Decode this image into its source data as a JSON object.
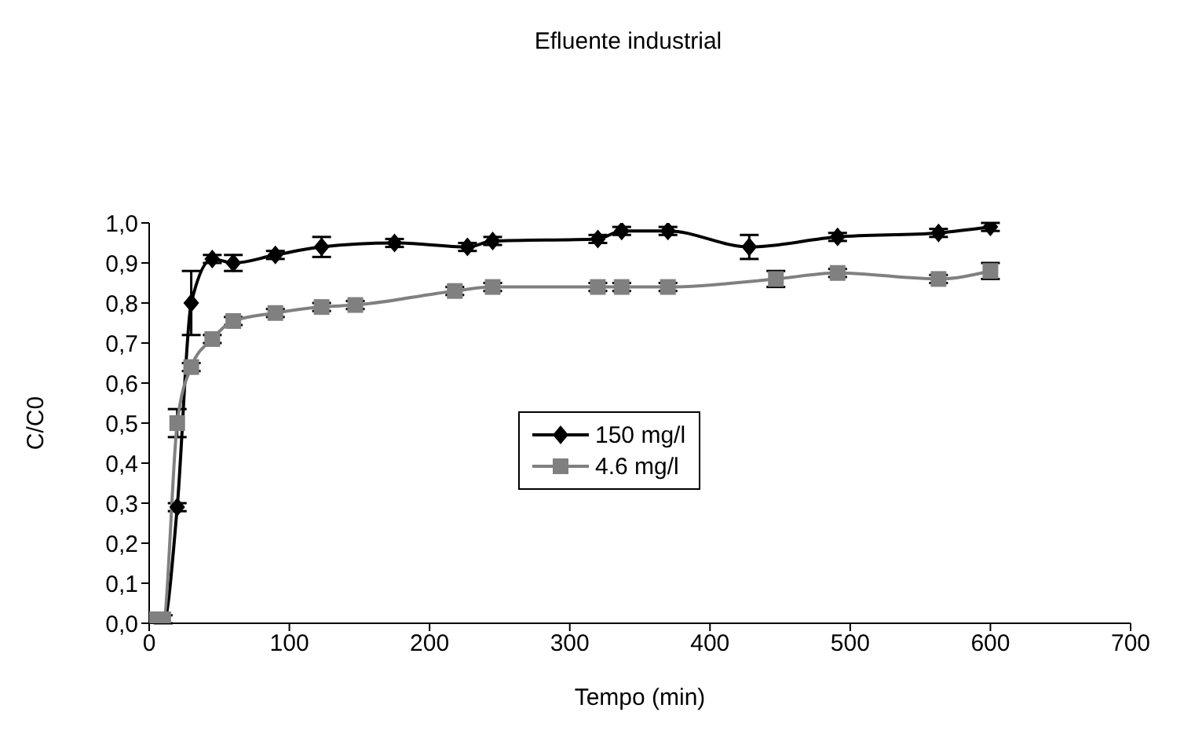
{
  "chart_data": {
    "type": "line",
    "title": "Efluente industrial",
    "xlabel": "Tempo (min)",
    "ylabel": "C/C0",
    "xlim": [
      0,
      700
    ],
    "xticks": [
      0,
      100,
      200,
      300,
      400,
      500,
      600,
      700
    ],
    "ylim": [
      0,
      1
    ],
    "yticks": [
      {
        "value": 0,
        "label": "0,0"
      },
      {
        "value": 0.1,
        "label": "0,1"
      },
      {
        "value": 0.2,
        "label": "0,2"
      },
      {
        "value": 0.3,
        "label": "0,3"
      },
      {
        "value": 0.4,
        "label": "0,4"
      },
      {
        "value": 0.5,
        "label": "0,5"
      },
      {
        "value": 0.6,
        "label": "0,6"
      },
      {
        "value": 0.7,
        "label": "0,7"
      },
      {
        "value": 0.8,
        "label": "0,8"
      },
      {
        "value": 0.9,
        "label": "0,9"
      },
      {
        "value": 1,
        "label": "1,0"
      }
    ],
    "legend": "right",
    "line_style": "solid",
    "series": [
      {
        "name": "150 mg/l",
        "color": "#000000",
        "marker": "diamond",
        "x": [
          0,
          10,
          20,
          30,
          45,
          60,
          90,
          123,
          175,
          227,
          245,
          320,
          337,
          370,
          428,
          491,
          563,
          600
        ],
        "values": [
          0,
          0,
          0.29,
          0.8,
          0.91,
          0.9,
          0.92,
          0.94,
          0.95,
          0.94,
          0.955,
          0.96,
          0.98,
          0.98,
          0.94,
          0.965,
          0.975,
          0.99
        ],
        "errors": [
          null,
          null,
          0.01,
          0.08,
          0.01,
          0.02,
          0.01,
          0.025,
          0.01,
          0.01,
          0.01,
          0.01,
          0.01,
          0.01,
          0.03,
          0.01,
          0.01,
          0.01
        ]
      },
      {
        "name": "4.6 mg/l",
        "color": "#808080",
        "marker": "square",
        "x": [
          0,
          10,
          20,
          30,
          45,
          60,
          90,
          123,
          147,
          218,
          245,
          320,
          337,
          370,
          447,
          491,
          563,
          600
        ],
        "values": [
          0.01,
          0.01,
          0.5,
          0.64,
          0.71,
          0.755,
          0.775,
          0.79,
          0.795,
          0.83,
          0.84,
          0.84,
          0.84,
          0.84,
          0.86,
          0.875,
          0.86,
          0.88
        ],
        "errors": [
          null,
          0.01,
          0.035,
          0.01,
          0.01,
          0.01,
          0.01,
          0.01,
          0.01,
          0.01,
          0.01,
          0.01,
          0.01,
          0.01,
          0.02,
          0.01,
          0.01,
          0.02
        ]
      }
    ]
  }
}
